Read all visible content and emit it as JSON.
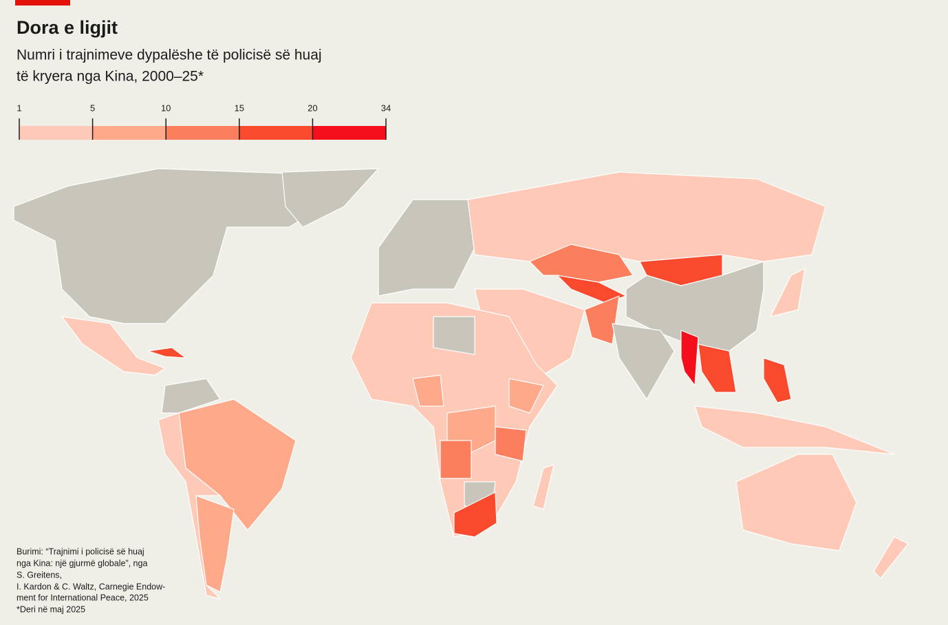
{
  "header": {
    "title": "Dora e ligjit",
    "subtitle": [
      "Numri i trajnimeve dypalëshe të policisë së huaj",
      "të kryera nga Kina, 2000–25*"
    ]
  },
  "legend": {
    "ticks": [
      1,
      5,
      10,
      15,
      20,
      34
    ],
    "colors": [
      "#ffc9b7",
      "#fda98a",
      "#fb7f5c",
      "#f94a2d",
      "#f50f1a"
    ]
  },
  "footer": {
    "source": [
      "Burimi: “Trajnimi i policisë së huaj",
      "nga Kina: një gjurmë globale”, nga",
      "S. Greitens,",
      "I. Kardon & C. Waltz, Carnegie Endow-",
      "ment for International Peace, 2025"
    ],
    "note": "*Deri në maj 2025"
  }
}
